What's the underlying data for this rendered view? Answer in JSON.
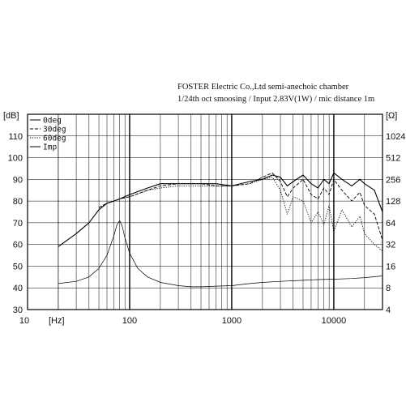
{
  "header": {
    "line1": "FOSTER Electric Co.,Ltd  semi-anechoic chamber",
    "line2": "1/24th oct smoosing / Input 2.83V(1W) / mic distance 1m"
  },
  "chart_data": {
    "type": "line",
    "title": "",
    "ylabel_left": "[dB]",
    "ylabel_right": "[Ω]",
    "xlabel": "[Hz]",
    "x_scale": "log",
    "xlim": [
      20,
      30000
    ],
    "ylim": [
      30,
      120
    ],
    "grid": true,
    "legend_position": "top-left",
    "x_tick_labels": [
      "10",
      "100",
      "1000",
      "10000"
    ],
    "y_tick_labels": [
      "30",
      "40",
      "50",
      "60",
      "70",
      "80",
      "90",
      "100",
      "110"
    ],
    "right_tick_labels": [
      "4",
      "8",
      "16",
      "32",
      "64",
      "128",
      "256",
      "512",
      "1024"
    ],
    "right_axis_map": {
      "40": 8,
      "50": 16,
      "60": 32,
      "70": 64,
      "80": 128,
      "90": 256,
      "100": 512,
      "110": 1024,
      "30": 4
    },
    "series": [
      {
        "name": "0deg",
        "style": "solid",
        "x": [
          20,
          30,
          40,
          50,
          60,
          70,
          80,
          100,
          150,
          200,
          300,
          500,
          700,
          1000,
          1500,
          2000,
          2500,
          3000,
          3500,
          4000,
          5000,
          6000,
          7000,
          8000,
          9000,
          10000,
          12000,
          15000,
          18000,
          20000,
          25000,
          30000
        ],
        "y": [
          59,
          65,
          70,
          76,
          79,
          80,
          81,
          83,
          86,
          88,
          88,
          88,
          88,
          87,
          89,
          90,
          92,
          91,
          87,
          89,
          92,
          88,
          86,
          90,
          88,
          93,
          90,
          87,
          90,
          88,
          85,
          75
        ]
      },
      {
        "name": "30deg",
        "style": "dashed",
        "x": [
          50,
          60,
          70,
          80,
          100,
          150,
          200,
          300,
          500,
          700,
          1000,
          1500,
          2000,
          2500,
          3000,
          3500,
          4000,
          5000,
          6000,
          7000,
          8000,
          9000,
          10000,
          12000,
          15000,
          18000,
          20000,
          25000,
          30000
        ],
        "y": [
          77,
          79,
          80,
          81,
          82,
          85,
          87,
          88,
          88,
          87,
          87,
          88,
          91,
          93,
          89,
          82,
          86,
          90,
          83,
          81,
          86,
          83,
          90,
          85,
          80,
          84,
          78,
          74,
          62
        ]
      },
      {
        "name": "60deg",
        "style": "dotted",
        "x": [
          50,
          60,
          70,
          80,
          100,
          150,
          200,
          300,
          500,
          700,
          1000,
          1500,
          2000,
          2500,
          3000,
          3500,
          4000,
          5000,
          6000,
          7000,
          8000,
          9000,
          10000,
          12000,
          15000,
          18000,
          20000,
          25000,
          30000
        ],
        "y": [
          77,
          79,
          80,
          81,
          82,
          85,
          86,
          87,
          87,
          87,
          87,
          88,
          90,
          91,
          85,
          74,
          82,
          80,
          70,
          75,
          69,
          78,
          66,
          76,
          68,
          73,
          65,
          60,
          57
        ]
      },
      {
        "name": "Imp",
        "style": "solid-thin",
        "x": [
          20,
          30,
          40,
          50,
          60,
          70,
          75,
          80,
          85,
          90,
          100,
          120,
          150,
          200,
          300,
          400,
          500,
          700,
          1000,
          1500,
          2000,
          3000,
          5000,
          7000,
          10000,
          15000,
          20000,
          30000
        ],
        "y": [
          42,
          43,
          45,
          49,
          55,
          64,
          69,
          71,
          68,
          63,
          56,
          49,
          45,
          42.5,
          41,
          40.5,
          40.5,
          40.8,
          41,
          42,
          42.5,
          43,
          43.5,
          43.8,
          44,
          44.3,
          44.7,
          45.5
        ]
      }
    ]
  }
}
